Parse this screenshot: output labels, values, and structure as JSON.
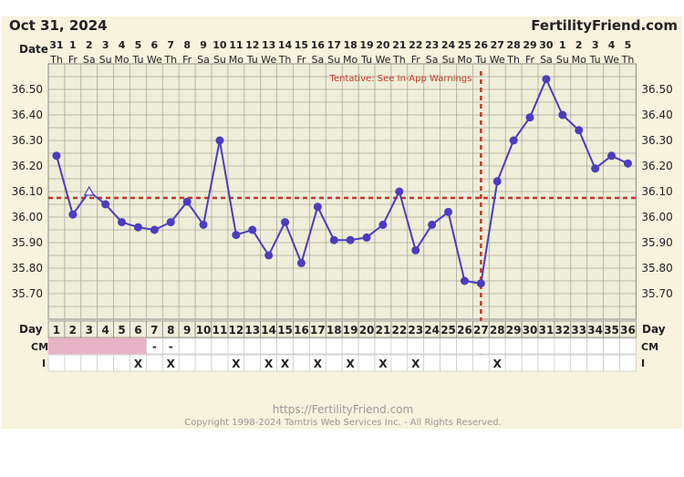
{
  "header": {
    "date_title": "Oct 31, 2024",
    "brand": "FertilityFriend.com"
  },
  "row_labels": {
    "date": "Date",
    "day": "Day",
    "cm": "CM",
    "i": "I"
  },
  "tentative_note": "Tentative: See In-App Warnings",
  "footer": {
    "url": "https://FertilityFriend.com",
    "copyright": "Copyright 1998-2024 Tamtris Web Services Inc. - All Rights Reserved."
  },
  "colors": {
    "background": "#f7f3dc",
    "plot": "#efeed9",
    "grid": "#aaa89a",
    "line": "#4b3cc0",
    "coverline": "#c0392b",
    "accent_text": "#c0392b",
    "cm_pink": "#e8b4c8"
  },
  "chart_data": {
    "type": "line",
    "title": "",
    "xlabel": "Day",
    "ylabel": "",
    "ylim": [
      35.6,
      36.6
    ],
    "y_ticks": [
      "36.50",
      "36.40",
      "36.30",
      "36.20",
      "36.10",
      "36.00",
      "35.90",
      "35.80",
      "35.70"
    ],
    "grid": true,
    "cycle_days": [
      1,
      2,
      3,
      4,
      5,
      6,
      7,
      8,
      9,
      10,
      11,
      12,
      13,
      14,
      15,
      16,
      17,
      18,
      19,
      20,
      21,
      22,
      23,
      24,
      25,
      26,
      27,
      28,
      29,
      30,
      31,
      32,
      33,
      34,
      35,
      36
    ],
    "dates": [
      "31",
      "1",
      "2",
      "3",
      "4",
      "5",
      "6",
      "7",
      "8",
      "9",
      "10",
      "11",
      "12",
      "13",
      "14",
      "15",
      "16",
      "17",
      "18",
      "19",
      "20",
      "21",
      "22",
      "23",
      "24",
      "25",
      "26",
      "27",
      "28",
      "29",
      "30",
      "1",
      "2",
      "3",
      "4",
      "5"
    ],
    "weekdays": [
      "Th",
      "Fr",
      "Sa",
      "Su",
      "Mo",
      "Tu",
      "We",
      "Th",
      "Fr",
      "Sa",
      "Su",
      "Mo",
      "Tu",
      "We",
      "Th",
      "Fr",
      "Sa",
      "Su",
      "Mo",
      "Tu",
      "We",
      "Th",
      "Fr",
      "Sa",
      "Su",
      "Mo",
      "Tu",
      "We",
      "Th",
      "Fr",
      "Sa",
      "Su",
      "Mo",
      "Tu",
      "We",
      "Th"
    ],
    "series": [
      {
        "values": [
          36.24,
          36.01,
          36.1,
          36.05,
          35.98,
          35.96,
          35.95,
          35.98,
          36.06,
          35.97,
          36.3,
          35.93,
          35.95,
          35.85,
          35.98,
          35.82,
          36.04,
          35.91,
          35.91,
          35.92,
          35.97,
          36.1,
          35.87,
          35.97,
          36.02,
          35.75,
          35.74,
          36.14,
          36.3,
          36.39,
          36.54,
          36.4,
          36.34,
          36.19,
          36.24,
          36.21
        ],
        "point_style": [
          "dot",
          "dot",
          "open-triangle",
          "dot",
          "dot",
          "dot",
          "dot",
          "dot",
          "dot",
          "dot",
          "dot",
          "dot",
          "dot",
          "dot",
          "dot",
          "dot",
          "dot",
          "dot",
          "dot",
          "dot",
          "dot",
          "dot",
          "dot",
          "dot",
          "dot",
          "dot",
          "dot",
          "dot",
          "dot",
          "dot",
          "dot",
          "dot",
          "dot",
          "dot",
          "dot",
          "dot"
        ]
      }
    ],
    "coverline": 36.075,
    "ovulation_day": 27,
    "cm": [
      "pink",
      "pink",
      "pink",
      "pink",
      "pink",
      "pink",
      "-",
      "-",
      "",
      "",
      "",
      "",
      "",
      "",
      "",
      "",
      "",
      "",
      "",
      "",
      "",
      "",
      "",
      "",
      "",
      "",
      "",
      "",
      "",
      "",
      "",
      "",
      "",
      "",
      "",
      ""
    ],
    "intercourse": [
      "",
      "",
      "",
      "",
      "",
      "X",
      "",
      "X",
      "",
      "",
      "",
      "X",
      "",
      "X",
      "X",
      "",
      "X",
      "",
      "X",
      "",
      "X",
      "",
      "X",
      "",
      "",
      "",
      "",
      "X",
      "",
      "",
      "",
      "",
      "",
      "",
      "",
      ""
    ]
  }
}
